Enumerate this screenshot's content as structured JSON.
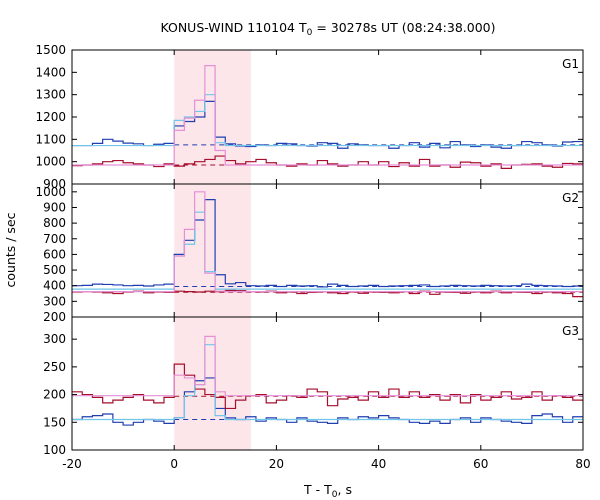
{
  "chart_data": {
    "type": "line",
    "title": {
      "prefix": "KONUS-WIND 110104 T",
      "sub": "0",
      "suffix": " = 30278s UT (08:24:38.000)"
    },
    "xlabel": {
      "prefix": "T - T",
      "sub": "0",
      "suffix": ", s"
    },
    "ylabel": "counts / sec",
    "xlim": [
      -20,
      80
    ],
    "x_ticks": [
      -20,
      0,
      20,
      40,
      60,
      80
    ],
    "grid": false,
    "legend": "none",
    "shaded_interval": [
      0,
      15
    ],
    "colors": {
      "blue": "#1f3fb0",
      "red": "#a50f2d",
      "cyan": "#6fc6ea",
      "pink": "#e58fd6",
      "shade": "#fde6ea"
    },
    "bin_edges": [
      -20,
      -18,
      -16,
      -14,
      -12,
      -10,
      -8,
      -6,
      -4,
      -2,
      0,
      2,
      4,
      6,
      8,
      10,
      12,
      14,
      16,
      18,
      20,
      22,
      24,
      26,
      28,
      30,
      32,
      34,
      36,
      38,
      40,
      42,
      44,
      46,
      48,
      50,
      52,
      54,
      56,
      58,
      60,
      62,
      64,
      66,
      68,
      70,
      72,
      74,
      76,
      78,
      80
    ],
    "panels": [
      {
        "label": "G1",
        "ylim": [
          900,
          1500
        ],
        "y_ticks": [
          900,
          1000,
          1100,
          1200,
          1300,
          1400,
          1500
        ],
        "series": [
          {
            "color": "blue",
            "values": [
              1072,
              1072,
              1082,
              1100,
              1092,
              1083,
              1080,
              1072,
              1078,
              1082,
              1160,
              1180,
              1200,
              1270,
              1110,
              1080,
              1070,
              1068,
              1075,
              1072,
              1082,
              1080,
              1072,
              1070,
              1085,
              1082,
              1060,
              1080,
              1075,
              1072,
              1072,
              1060,
              1072,
              1085,
              1065,
              1082,
              1062,
              1090,
              1075,
              1068,
              1075,
              1065,
              1060,
              1072,
              1090,
              1085,
              1075,
              1070,
              1088,
              1090
            ]
          },
          {
            "color": "red",
            "values": [
              982,
              985,
              990,
              1000,
              1005,
              995,
              990,
              985,
              978,
              990,
              980,
              990,
              1000,
              1010,
              1025,
              1005,
              990,
              1000,
              1010,
              995,
              985,
              980,
              990,
              985,
              1005,
              990,
              980,
              985,
              1000,
              985,
              1000,
              978,
              995,
              980,
              1010,
              980,
              985,
              975,
              998,
              995,
              980,
              990,
              970,
              985,
              988,
              990,
              980,
              975,
              992,
              990
            ]
          },
          {
            "color": "cyan",
            "values": [
              1072,
              1072,
              1072,
              1072,
              1072,
              1072,
              1072,
              1072,
              1072,
              1072,
              1185,
              1200,
              1225,
              1300,
              1085,
              1072,
              1072,
              1072,
              1072,
              1072,
              1072,
              1072,
              1072,
              1072,
              1072,
              1072,
              1072,
              1072,
              1072,
              1072,
              1072,
              1072,
              1072,
              1072,
              1072,
              1072,
              1072,
              1072,
              1072,
              1072,
              1072,
              1072,
              1072,
              1072,
              1072,
              1072,
              1072,
              1072,
              1072,
              1072
            ]
          },
          {
            "color": "pink",
            "values": [
              985,
              985,
              985,
              985,
              985,
              985,
              985,
              985,
              985,
              985,
              1140,
              1195,
              1275,
              1430,
              1050,
              985,
              985,
              985,
              985,
              985,
              985,
              985,
              985,
              985,
              985,
              985,
              985,
              985,
              985,
              985,
              985,
              985,
              985,
              985,
              985,
              985,
              985,
              985,
              985,
              985,
              985,
              985,
              985,
              985,
              985,
              985,
              985,
              985,
              985,
              985
            ]
          }
        ],
        "background_levels": [
          {
            "color": "blue",
            "value": 1075
          },
          {
            "color": "red",
            "value": 985
          }
        ]
      },
      {
        "label": "G2",
        "ylim": [
          200,
          1050
        ],
        "y_ticks": [
          200,
          300,
          400,
          500,
          600,
          700,
          800,
          900,
          1000
        ],
        "series": [
          {
            "color": "blue",
            "values": [
              400,
              402,
              410,
              408,
              405,
              400,
              402,
              398,
              405,
              410,
              600,
              690,
              820,
              950,
              470,
              412,
              420,
              400,
              398,
              402,
              395,
              402,
              398,
              400,
              392,
              410,
              402,
              395,
              398,
              402,
              395,
              398,
              400,
              402,
              405,
              395,
              398,
              402,
              400,
              398,
              402,
              400,
              398,
              400,
              410,
              402,
              400,
              398,
              395,
              398
            ]
          },
          {
            "color": "red",
            "values": [
              360,
              362,
              360,
              355,
              350,
              360,
              365,
              355,
              360,
              358,
              365,
              362,
              360,
              365,
              362,
              370,
              368,
              362,
              360,
              365,
              355,
              360,
              350,
              358,
              362,
              355,
              350,
              360,
              352,
              360,
              358,
              355,
              362,
              350,
              365,
              345,
              360,
              358,
              352,
              360,
              355,
              365,
              355,
              360,
              358,
              350,
              360,
              355,
              350,
              330
            ]
          },
          {
            "color": "cyan",
            "values": [
              378,
              378,
              378,
              378,
              378,
              378,
              378,
              378,
              378,
              378,
              590,
              665,
              870,
              490,
              378,
              378,
              378,
              378,
              378,
              378,
              378,
              378,
              378,
              378,
              378,
              378,
              378,
              378,
              378,
              378,
              378,
              378,
              378,
              378,
              378,
              378,
              378,
              378,
              378,
              378,
              378,
              378,
              378,
              378,
              378,
              378,
              378,
              378,
              378,
              378
            ]
          },
          {
            "color": "pink",
            "values": [
              362,
              362,
              362,
              362,
              362,
              362,
              362,
              362,
              362,
              362,
              590,
              760,
              1000,
              480,
              365,
              362,
              362,
              362,
              362,
              362,
              362,
              362,
              362,
              362,
              362,
              362,
              362,
              362,
              362,
              362,
              362,
              362,
              362,
              362,
              362,
              362,
              362,
              362,
              362,
              362,
              362,
              362,
              362,
              362,
              362,
              362,
              362,
              362,
              362,
              362
            ]
          }
        ],
        "background_levels": [
          {
            "color": "blue",
            "value": 395
          },
          {
            "color": "red",
            "value": 358
          }
        ]
      },
      {
        "label": "G3",
        "ylim": [
          100,
          340
        ],
        "y_ticks": [
          100,
          150,
          200,
          250,
          300
        ],
        "series": [
          {
            "color": "blue",
            "values": [
              155,
              160,
              162,
              165,
              150,
              145,
              150,
              155,
              152,
              148,
              158,
              205,
              225,
              230,
              175,
              158,
              155,
              160,
              152,
              158,
              155,
              150,
              158,
              152,
              150,
              148,
              158,
              155,
              160,
              158,
              162,
              158,
              155,
              150,
              148,
              152,
              148,
              155,
              158,
              150,
              158,
              155,
              152,
              150,
              148,
              162,
              165,
              160,
              150,
              160
            ]
          },
          {
            "color": "red",
            "values": [
              205,
              200,
              195,
              185,
              190,
              195,
              200,
              190,
              185,
              195,
              255,
              235,
              210,
              200,
              195,
              175,
              190,
              198,
              200,
              185,
              190,
              198,
              195,
              210,
              205,
              180,
              192,
              195,
              190,
              205,
              195,
              210,
              195,
              205,
              195,
              200,
              190,
              200,
              185,
              200,
              190,
              195,
              205,
              192,
              195,
              205,
              190,
              198,
              195,
              190
            ]
          },
          {
            "color": "cyan",
            "values": [
              155,
              155,
              155,
              155,
              155,
              155,
              155,
              155,
              155,
              155,
              158,
              198,
              218,
              290,
              162,
              155,
              155,
              155,
              155,
              155,
              155,
              155,
              155,
              155,
              155,
              155,
              155,
              155,
              155,
              155,
              155,
              155,
              155,
              155,
              155,
              155,
              155,
              155,
              155,
              155,
              155,
              155,
              155,
              155,
              155,
              155,
              155,
              155,
              155,
              155
            ]
          },
          {
            "color": "pink",
            "values": [
              198,
              198,
              198,
              198,
              198,
              198,
              198,
              198,
              198,
              198,
              235,
              230,
              218,
              305,
              205,
              198,
              198,
              198,
              198,
              198,
              198,
              198,
              198,
              198,
              198,
              198,
              198,
              198,
              198,
              198,
              198,
              198,
              198,
              198,
              198,
              198,
              198,
              198,
              198,
              198,
              198,
              198,
              198,
              198,
              198,
              198,
              198,
              198,
              198,
              198
            ]
          }
        ],
        "background_levels": [
          {
            "color": "blue",
            "value": 155
          },
          {
            "color": "red",
            "value": 197
          }
        ]
      }
    ]
  }
}
